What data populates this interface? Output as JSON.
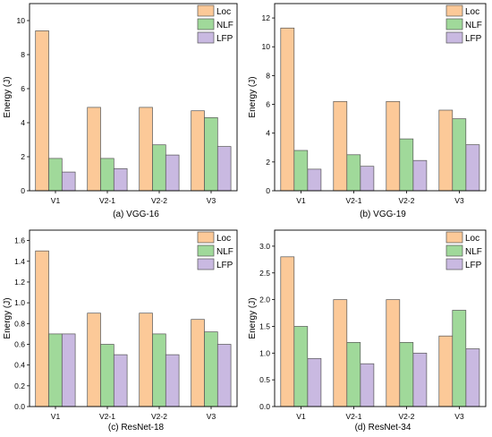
{
  "colors": {
    "Loc": "#fcc998",
    "NLF": "#a0d99a",
    "LFP": "#c9b9e1",
    "stroke": "#555555"
  },
  "chart_data": [
    {
      "type": "bar",
      "caption": "(a) VGG-16",
      "ylabel": "Energy (J)",
      "xlabel": "",
      "categories": [
        "V1",
        "V2-1",
        "V2-2",
        "V3"
      ],
      "series": [
        {
          "name": "Loc",
          "values": [
            9.4,
            4.9,
            4.9,
            4.7
          ]
        },
        {
          "name": "NLF",
          "values": [
            1.9,
            1.9,
            2.7,
            4.3
          ]
        },
        {
          "name": "LFP",
          "values": [
            1.1,
            1.3,
            2.1,
            2.6
          ]
        }
      ],
      "ylim": [
        0,
        11
      ],
      "yticks": [
        0,
        2,
        4,
        6,
        8,
        10
      ],
      "ytick_labels": [
        "0",
        "2",
        "4",
        "6",
        "8",
        "10"
      ],
      "legend": "top-right",
      "grid": false
    },
    {
      "type": "bar",
      "caption": "(b) VGG-19",
      "ylabel": "Energy (J)",
      "xlabel": "",
      "categories": [
        "V1",
        "V2-1",
        "V2-2",
        "V3"
      ],
      "series": [
        {
          "name": "Loc",
          "values": [
            11.3,
            6.2,
            6.2,
            5.6
          ]
        },
        {
          "name": "NLF",
          "values": [
            2.8,
            2.5,
            3.6,
            5.0
          ]
        },
        {
          "name": "LFP",
          "values": [
            1.5,
            1.7,
            2.1,
            3.2
          ]
        }
      ],
      "ylim": [
        0,
        13
      ],
      "yticks": [
        0,
        2,
        4,
        6,
        8,
        10,
        12
      ],
      "ytick_labels": [
        "0",
        "2",
        "4",
        "6",
        "8",
        "10",
        "12"
      ],
      "legend": "top-right",
      "grid": false
    },
    {
      "type": "bar",
      "caption": "(c) ResNet-18",
      "ylabel": "Energy (J)",
      "xlabel": "",
      "categories": [
        "V1",
        "V2-1",
        "V2-2",
        "V3"
      ],
      "series": [
        {
          "name": "Loc",
          "values": [
            1.5,
            0.9,
            0.9,
            0.84
          ]
        },
        {
          "name": "NLF",
          "values": [
            0.7,
            0.6,
            0.7,
            0.72
          ]
        },
        {
          "name": "LFP",
          "values": [
            0.7,
            0.5,
            0.5,
            0.6
          ]
        }
      ],
      "ylim": [
        0,
        1.7
      ],
      "yticks": [
        0,
        0.2,
        0.4,
        0.6,
        0.8,
        1.0,
        1.2,
        1.4,
        1.6
      ],
      "ytick_labels": [
        "0.0",
        "0.2",
        "0.4",
        "0.6",
        "0.8",
        "1.0",
        "1.2",
        "1.4",
        "1.6"
      ],
      "legend": "top-right",
      "grid": false
    },
    {
      "type": "bar",
      "caption": "(d) ResNet-34",
      "ylabel": "Energy (J)",
      "xlabel": "",
      "categories": [
        "V1",
        "V2-1",
        "V2-2",
        "V3"
      ],
      "series": [
        {
          "name": "Loc",
          "values": [
            2.8,
            2.0,
            2.0,
            1.32
          ]
        },
        {
          "name": "NLF",
          "values": [
            1.5,
            1.2,
            1.2,
            1.8
          ]
        },
        {
          "name": "LFP",
          "values": [
            0.9,
            0.8,
            1.0,
            1.08
          ]
        }
      ],
      "ylim": [
        0,
        3.3
      ],
      "yticks": [
        0,
        0.5,
        1.0,
        1.5,
        2.0,
        2.5,
        3.0
      ],
      "ytick_labels": [
        "0.0",
        "0.5",
        "1.0",
        "1.5",
        "2.0",
        "2.5",
        "3.0"
      ],
      "legend": "top-right",
      "grid": false
    }
  ]
}
